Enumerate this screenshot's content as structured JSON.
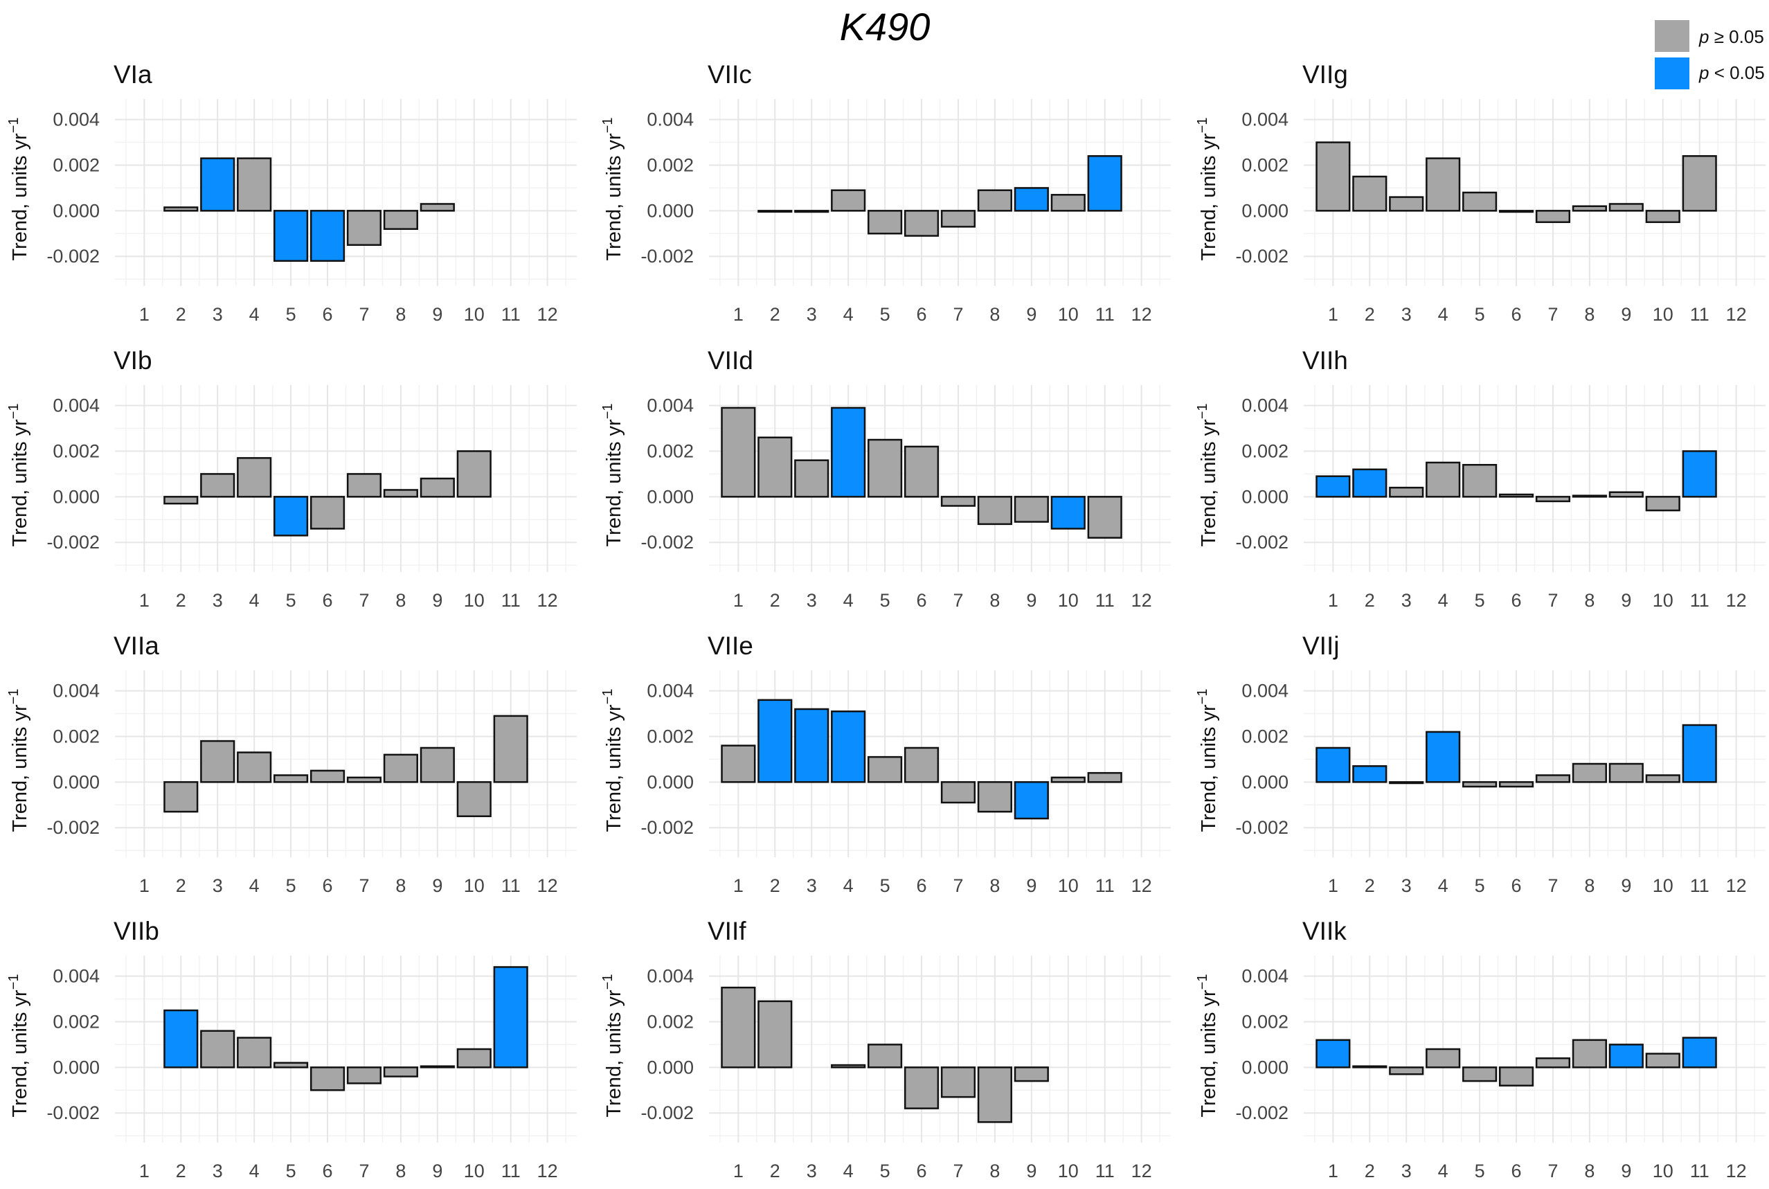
{
  "chart_data": {
    "type": "bar",
    "title": "K490",
    "ylabel": "Trend, units yr",
    "ylabel_superscript": "−1",
    "ylim": [
      -0.0033,
      0.0049
    ],
    "y_ticks": [
      "0.004",
      "0.002",
      "0.000",
      "-0.002"
    ],
    "y_tick_values": [
      0.004,
      0.002,
      0.0,
      -0.002
    ],
    "categories": [
      "1",
      "2",
      "3",
      "4",
      "5",
      "6",
      "7",
      "8",
      "9",
      "10",
      "11",
      "12"
    ],
    "colors": {
      "not_significant": "#a6a6a6",
      "significant": "#0a8dff"
    },
    "legend": {
      "position": "top-right",
      "entries": [
        {
          "p": "p",
          "rel": " ≥ 0.05",
          "significant": false
        },
        {
          "p": "p",
          "rel": " < 0.05",
          "significant": true
        }
      ]
    },
    "panels": [
      {
        "title": "VIa",
        "values": [
          null,
          0.00015,
          0.0023,
          0.0023,
          -0.0022,
          -0.0022,
          -0.0015,
          -0.0008,
          0.0003,
          null,
          null,
          null
        ],
        "significant": [
          false,
          false,
          true,
          false,
          true,
          true,
          false,
          false,
          false,
          false,
          false,
          false
        ]
      },
      {
        "title": "VIIc",
        "values": [
          null,
          0.0,
          -5e-05,
          0.0009,
          -0.001,
          -0.0011,
          -0.0007,
          0.0009,
          0.001,
          0.0007,
          0.0024,
          null
        ],
        "significant": [
          false,
          false,
          false,
          false,
          false,
          false,
          false,
          false,
          true,
          false,
          true,
          false
        ]
      },
      {
        "title": "VIIg",
        "values": [
          0.003,
          0.0015,
          0.0006,
          0.0023,
          0.0008,
          -5e-05,
          -0.0005,
          0.0002,
          0.0003,
          -0.0005,
          0.0024,
          null
        ],
        "significant": [
          false,
          false,
          false,
          false,
          false,
          false,
          false,
          false,
          false,
          false,
          false,
          false
        ]
      },
      {
        "title": "VIb",
        "values": [
          null,
          -0.0003,
          0.001,
          0.0017,
          -0.0017,
          -0.0014,
          0.001,
          0.0003,
          0.0008,
          0.002,
          null,
          null
        ],
        "significant": [
          false,
          false,
          false,
          false,
          true,
          false,
          false,
          false,
          false,
          false,
          false,
          false
        ]
      },
      {
        "title": "VIId",
        "values": [
          0.0039,
          0.0026,
          0.0016,
          0.0039,
          0.0025,
          0.0022,
          -0.0004,
          -0.0012,
          -0.0011,
          -0.0014,
          -0.0018,
          null
        ],
        "significant": [
          false,
          false,
          false,
          true,
          false,
          false,
          false,
          false,
          false,
          true,
          false,
          false
        ]
      },
      {
        "title": "VIIh",
        "values": [
          0.0009,
          0.0012,
          0.0004,
          0.0015,
          0.0014,
          0.0001,
          -0.0002,
          5e-05,
          0.0002,
          -0.0006,
          0.002,
          null
        ],
        "significant": [
          true,
          true,
          false,
          false,
          false,
          false,
          false,
          false,
          false,
          false,
          true,
          false
        ]
      },
      {
        "title": "VIIa",
        "values": [
          null,
          -0.0013,
          0.0018,
          0.0013,
          0.0003,
          0.0005,
          0.0002,
          0.0012,
          0.0015,
          -0.0015,
          0.0029,
          null
        ],
        "significant": [
          false,
          false,
          false,
          false,
          false,
          false,
          false,
          false,
          false,
          false,
          false,
          false
        ]
      },
      {
        "title": "VIIe",
        "values": [
          0.0016,
          0.0036,
          0.0032,
          0.0031,
          0.0011,
          0.0015,
          -0.0009,
          -0.0013,
          -0.0016,
          0.0002,
          0.0004,
          null
        ],
        "significant": [
          false,
          true,
          true,
          true,
          false,
          false,
          false,
          false,
          true,
          false,
          false,
          false
        ]
      },
      {
        "title": "VIIj",
        "values": [
          0.0015,
          0.0007,
          -5e-05,
          0.0022,
          -0.0002,
          -0.0002,
          0.0003,
          0.0008,
          0.0008,
          0.0003,
          0.0025,
          null
        ],
        "significant": [
          true,
          true,
          false,
          true,
          false,
          false,
          false,
          false,
          false,
          false,
          true,
          false
        ]
      },
      {
        "title": "VIIb",
        "values": [
          null,
          0.0025,
          0.0016,
          0.0013,
          0.0002,
          -0.001,
          -0.0007,
          -0.0004,
          5e-05,
          0.0008,
          0.0044,
          null
        ],
        "significant": [
          false,
          true,
          false,
          false,
          false,
          false,
          false,
          false,
          false,
          false,
          true,
          false
        ]
      },
      {
        "title": "VIIf",
        "values": [
          0.0035,
          0.0029,
          null,
          0.0001,
          0.001,
          -0.0018,
          -0.0013,
          -0.0024,
          -0.0006,
          null,
          null,
          null
        ],
        "significant": [
          false,
          false,
          false,
          false,
          false,
          false,
          false,
          false,
          false,
          false,
          false,
          false
        ]
      },
      {
        "title": "VIIk",
        "values": [
          0.0012,
          5e-05,
          -0.0003,
          0.0008,
          -0.0006,
          -0.0008,
          0.0004,
          0.0012,
          0.001,
          0.0006,
          0.0013,
          null
        ],
        "significant": [
          true,
          false,
          false,
          false,
          false,
          false,
          false,
          false,
          true,
          false,
          true,
          false
        ]
      }
    ]
  }
}
